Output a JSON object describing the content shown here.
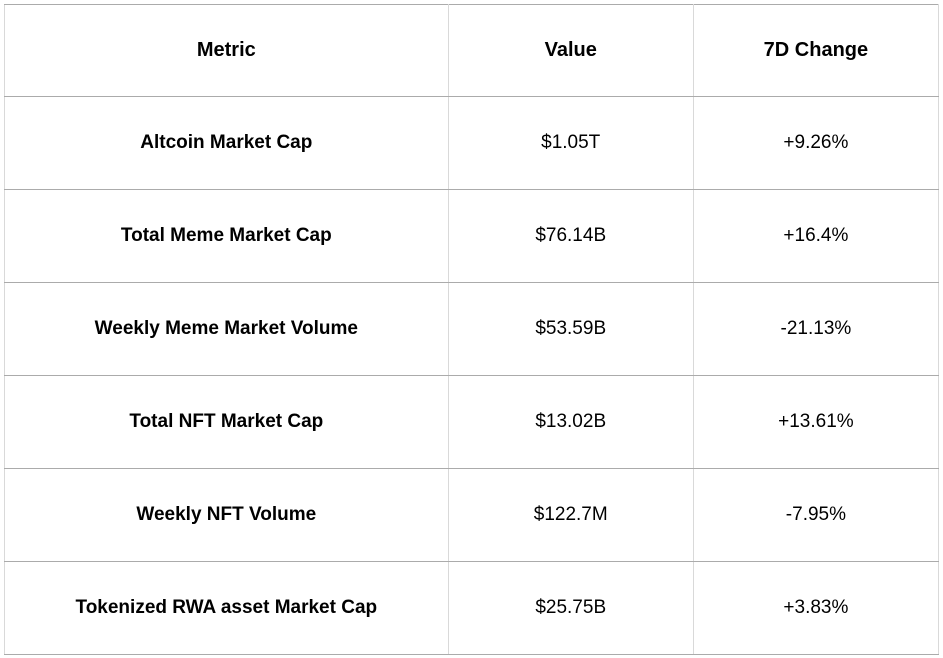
{
  "table": {
    "headers": [
      "Metric",
      "Value",
      "7D Change"
    ],
    "rows": [
      {
        "metric": "Altcoin Market Cap",
        "value": "$1.05T",
        "change": "+9.26%"
      },
      {
        "metric": "Total Meme Market Cap",
        "value": "$76.14B",
        "change": "+16.4%"
      },
      {
        "metric": "Weekly Meme Market Volume",
        "value": "$53.59B",
        "change": "-21.13%"
      },
      {
        "metric": "Total NFT Market Cap",
        "value": "$13.02B",
        "change": "+13.61%"
      },
      {
        "metric": "Weekly NFT Volume",
        "value": "$122.7M",
        "change": "-7.95%"
      },
      {
        "metric": "Tokenized RWA asset Market Cap",
        "value": "$25.75B",
        "change": "+3.83%"
      }
    ]
  },
  "colors": {
    "background": "#ffffff",
    "text": "#000000",
    "border_horizontal": "#ababab",
    "border_vertical": "#d9d9d9",
    "border_outer": "#c9c9c9"
  },
  "chart_data": {
    "type": "table",
    "columns": [
      "Metric",
      "Value",
      "7D Change"
    ],
    "rows": [
      [
        "Altcoin Market Cap",
        "$1.05T",
        "+9.26%"
      ],
      [
        "Total Meme Market Cap",
        "$76.14B",
        "+16.4%"
      ],
      [
        "Weekly Meme Market Volume",
        "$53.59B",
        "-21.13%"
      ],
      [
        "Total NFT Market Cap",
        "$13.02B",
        "+13.61%"
      ],
      [
        "Weekly NFT Volume",
        "$122.7M",
        "-7.95%"
      ],
      [
        "Tokenized RWA asset Market Cap",
        "$25.75B",
        "+3.83%"
      ]
    ]
  }
}
